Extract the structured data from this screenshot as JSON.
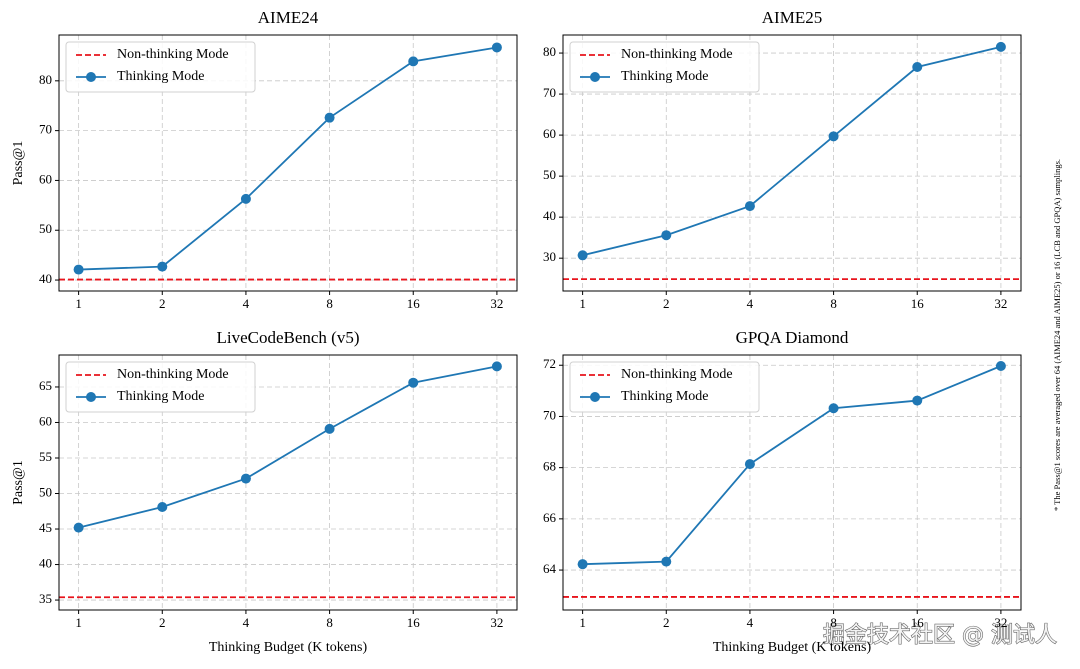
{
  "chart_data": [
    {
      "type": "line",
      "title": "AIME24",
      "ylabel": "Pass@1",
      "x": [
        1,
        2,
        4,
        8,
        16,
        32
      ],
      "xscale": "log",
      "xlim": [
        0.85,
        37.8
      ],
      "xticks": [
        1,
        2,
        4,
        8,
        16,
        32
      ],
      "ylim": [
        37.8,
        89.2
      ],
      "yticks": [
        40,
        50,
        60,
        70,
        80
      ],
      "grid": true,
      "legend": "upper left",
      "series": [
        {
          "name": "Non-thinking Mode",
          "color": "#e8141c",
          "linestyle": "dashed",
          "value": 40.1
        },
        {
          "name": "Thinking Mode",
          "color": "#1f77b4",
          "marker": "o",
          "values": [
            42.1,
            42.7,
            56.3,
            72.6,
            83.9,
            86.7
          ]
        }
      ]
    },
    {
      "type": "line",
      "title": "AIME25",
      "x": [
        1,
        2,
        4,
        8,
        16,
        32
      ],
      "xscale": "log",
      "xlim": [
        0.85,
        37.8
      ],
      "xticks": [
        1,
        2,
        4,
        8,
        16,
        32
      ],
      "ylim": [
        22.0,
        84.4
      ],
      "yticks": [
        30,
        40,
        50,
        60,
        70,
        80
      ],
      "grid": true,
      "legend": "upper left",
      "series": [
        {
          "name": "Non-thinking Mode",
          "color": "#e8141c",
          "linestyle": "dashed",
          "value": 24.9
        },
        {
          "name": "Thinking Mode",
          "color": "#1f77b4",
          "marker": "o",
          "values": [
            30.7,
            35.6,
            42.7,
            59.7,
            76.6,
            81.5
          ]
        }
      ]
    },
    {
      "type": "line",
      "title": "LiveCodeBench (v5)",
      "ylabel": "Pass@1",
      "xlabel": "Thinking Budget (K tokens)",
      "x": [
        1,
        2,
        4,
        8,
        16,
        32
      ],
      "xscale": "log",
      "xlim": [
        0.85,
        37.8
      ],
      "xticks": [
        1,
        2,
        4,
        8,
        16,
        32
      ],
      "ylim": [
        33.6,
        69.5
      ],
      "yticks": [
        35,
        40,
        45,
        50,
        55,
        60,
        65
      ],
      "grid": true,
      "legend": "upper left",
      "series": [
        {
          "name": "Non-thinking Mode",
          "color": "#e8141c",
          "linestyle": "dashed",
          "value": 35.4
        },
        {
          "name": "Thinking Mode",
          "color": "#1f77b4",
          "marker": "o",
          "values": [
            45.2,
            48.1,
            52.1,
            59.1,
            65.6,
            67.9
          ]
        }
      ]
    },
    {
      "type": "line",
      "title": "GPQA Diamond",
      "xlabel": "Thinking Budget (K tokens)",
      "x": [
        1,
        2,
        4,
        8,
        16,
        32
      ],
      "xscale": "log",
      "xlim": [
        0.85,
        37.8
      ],
      "xticks": [
        1,
        2,
        4,
        8,
        16,
        32
      ],
      "ylim": [
        62.44,
        72.4
      ],
      "yticks": [
        64,
        66,
        68,
        70,
        72
      ],
      "grid": true,
      "legend": "upper left",
      "series": [
        {
          "name": "Non-thinking Mode",
          "color": "#e8141c",
          "linestyle": "dashed",
          "value": 62.95
        },
        {
          "name": "Thinking Mode",
          "color": "#1f77b4",
          "marker": "o",
          "values": [
            64.23,
            64.33,
            68.14,
            70.32,
            70.62,
            71.97
          ]
        }
      ]
    }
  ],
  "note": "* The Pass@1 scores are averaged over 64 (AIME24 and AIME25) or 16 (LCB and GPQA) samplings.",
  "watermark": "掘金技术社区 @ 测试人"
}
